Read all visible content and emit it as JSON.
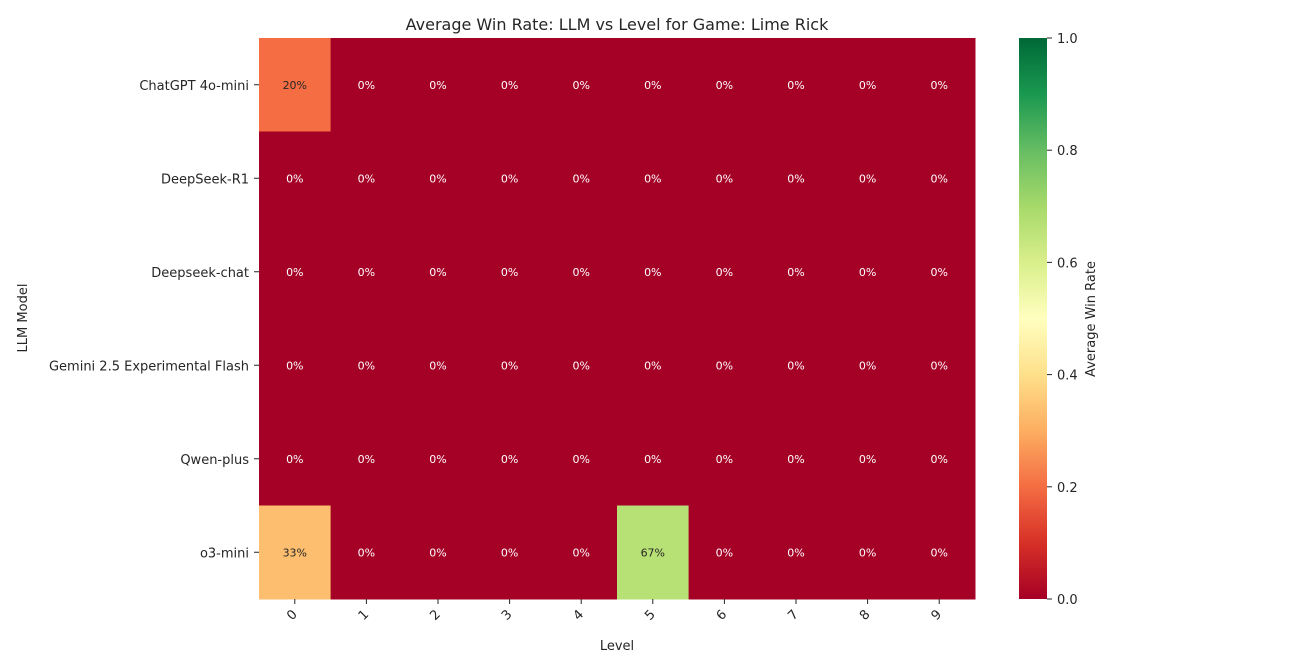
{
  "chart_data": {
    "type": "heatmap",
    "title": "Average Win Rate: LLM vs Level for Game: Lime Rick",
    "xlabel": "Level",
    "ylabel": "LLM Model",
    "x_categories": [
      "0",
      "1",
      "2",
      "3",
      "4",
      "5",
      "6",
      "7",
      "8",
      "9"
    ],
    "y_categories": [
      "ChatGPT 4o-mini",
      "DeepSeek-R1",
      "Deepseek-chat",
      "Gemini 2.5 Experimental Flash",
      "Qwen-plus",
      "o3-mini"
    ],
    "values": [
      [
        0.2,
        0,
        0,
        0,
        0,
        0,
        0,
        0,
        0,
        0
      ],
      [
        0,
        0,
        0,
        0,
        0,
        0,
        0,
        0,
        0,
        0
      ],
      [
        0,
        0,
        0,
        0,
        0,
        0,
        0,
        0,
        0,
        0
      ],
      [
        0,
        0,
        0,
        0,
        0,
        0,
        0,
        0,
        0,
        0
      ],
      [
        0,
        0,
        0,
        0,
        0,
        0,
        0,
        0,
        0,
        0
      ],
      [
        0.333,
        0,
        0,
        0,
        0,
        0.667,
        0,
        0,
        0,
        0
      ]
    ],
    "cell_labels": [
      [
        "20%",
        "0%",
        "0%",
        "0%",
        "0%",
        "0%",
        "0%",
        "0%",
        "0%",
        "0%"
      ],
      [
        "0%",
        "0%",
        "0%",
        "0%",
        "0%",
        "0%",
        "0%",
        "0%",
        "0%",
        "0%"
      ],
      [
        "0%",
        "0%",
        "0%",
        "0%",
        "0%",
        "0%",
        "0%",
        "0%",
        "0%",
        "0%"
      ],
      [
        "0%",
        "0%",
        "0%",
        "0%",
        "0%",
        "0%",
        "0%",
        "0%",
        "0%",
        "0%"
      ],
      [
        "0%",
        "0%",
        "0%",
        "0%",
        "0%",
        "0%",
        "0%",
        "0%",
        "0%",
        "0%"
      ],
      [
        "33%",
        "0%",
        "0%",
        "0%",
        "0%",
        "67%",
        "0%",
        "0%",
        "0%",
        "0%"
      ]
    ],
    "colormap": "RdYlGn",
    "vmin": 0,
    "vmax": 1,
    "colorbar": {
      "label": "Average Win Rate",
      "ticks": [
        "0.0",
        "0.2",
        "0.4",
        "0.6",
        "0.8",
        "1.0"
      ]
    },
    "colormap_stops": [
      "#a50026",
      "#d73027",
      "#f46d43",
      "#fdae61",
      "#fee08b",
      "#ffffbf",
      "#d9ef8b",
      "#a6d96a",
      "#66bd63",
      "#1a9850",
      "#006837"
    ]
  }
}
